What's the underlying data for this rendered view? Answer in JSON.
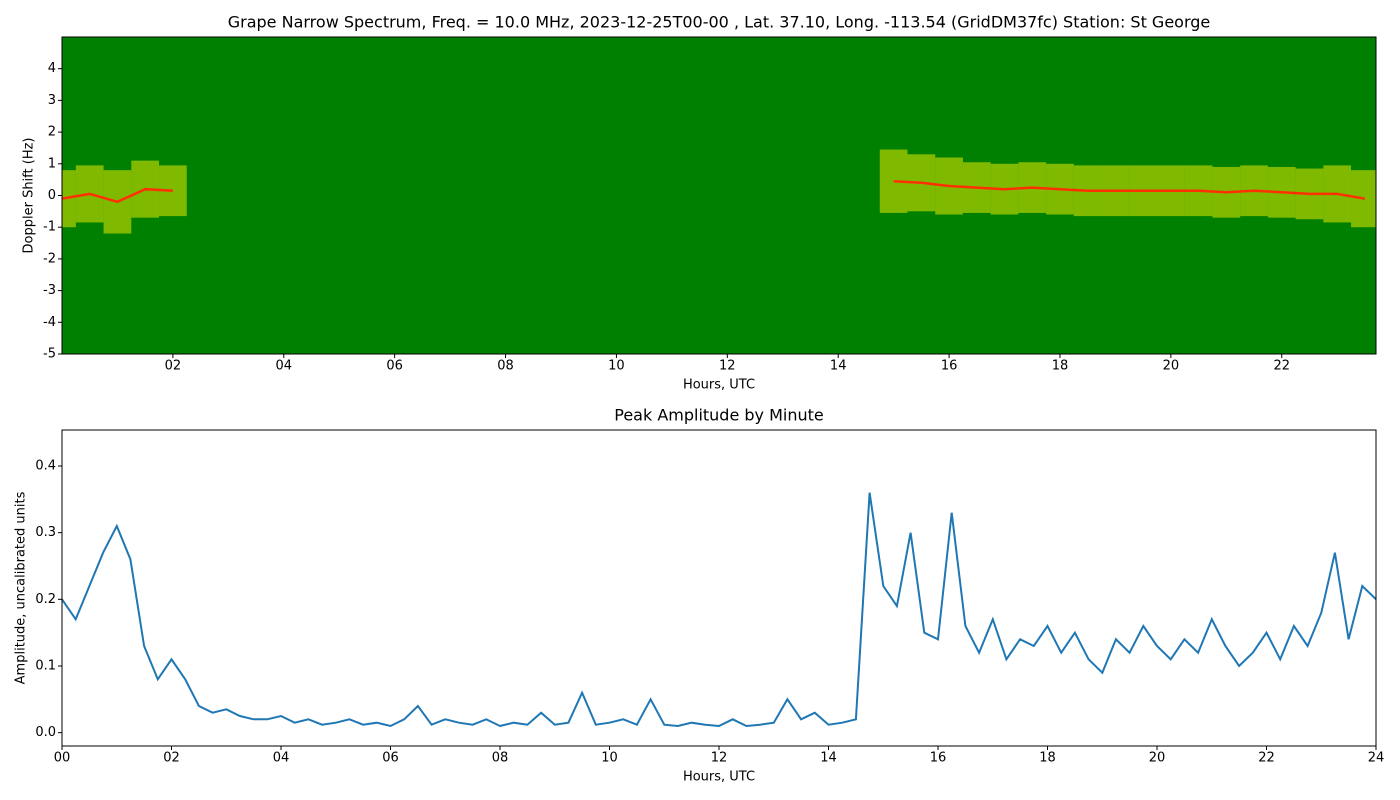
{
  "chart_data": [
    {
      "type": "spectrogram",
      "title": "Grape Narrow Spectrum, Freq. = 10.0 MHz, 2023-12-25T00-00 , Lat.  37.10, Long. -113.54 (GridDM37fc) Station: St George",
      "xlabel": "Hours, UTC",
      "ylabel": "Doppler Shift (Hz)",
      "x": [
        0,
        0.5,
        1,
        1.5,
        2,
        2.5,
        3,
        3.5,
        4,
        4.5,
        5,
        5.5,
        6,
        6.5,
        7,
        7.5,
        8,
        8.5,
        9,
        9.5,
        10,
        10.5,
        11,
        11.5,
        12,
        12.5,
        13,
        13.5,
        14,
        14.5,
        15,
        15.5,
        16,
        16.5,
        17,
        17.5,
        18,
        18.5,
        19,
        19.5,
        20,
        20.5,
        21,
        21.5,
        22,
        22.5,
        23,
        23.5
      ],
      "series": [
        {
          "name": "Doppler trace",
          "color": "#ff3000",
          "values": [
            -0.1,
            0.05,
            -0.2,
            0.2,
            0.15,
            null,
            null,
            null,
            null,
            null,
            null,
            null,
            null,
            null,
            null,
            null,
            null,
            null,
            null,
            null,
            null,
            null,
            null,
            null,
            null,
            null,
            null,
            null,
            null,
            null,
            0.45,
            0.4,
            0.3,
            0.25,
            0.2,
            0.25,
            0.2,
            0.15,
            0.15,
            0.15,
            0.15,
            0.15,
            0.1,
            0.15,
            0.1,
            0.05,
            0.05,
            -0.1
          ]
        },
        {
          "name": "Signal spread",
          "color": "#e8e800",
          "values": [
            0.9,
            0.9,
            1,
            0.9,
            0.8,
            null,
            null,
            null,
            null,
            null,
            null,
            null,
            null,
            null,
            null,
            null,
            null,
            null,
            null,
            null,
            null,
            null,
            null,
            null,
            null,
            null,
            null,
            null,
            null,
            null,
            1,
            0.9,
            0.9,
            0.8,
            0.8,
            0.8,
            0.8,
            0.8,
            0.8,
            0.8,
            0.8,
            0.8,
            0.8,
            0.8,
            0.8,
            0.8,
            0.9,
            0.9
          ]
        }
      ],
      "background": "#008000",
      "xlim": [
        0,
        23.7
      ],
      "ylim": [
        -5,
        5
      ],
      "xticks": [
        {
          "value": 2,
          "label": "02"
        },
        {
          "value": 4,
          "label": "04"
        },
        {
          "value": 6,
          "label": "06"
        },
        {
          "value": 8,
          "label": "08"
        },
        {
          "value": 10,
          "label": "10"
        },
        {
          "value": 12,
          "label": "12"
        },
        {
          "value": 14,
          "label": "14"
        },
        {
          "value": 16,
          "label": "16"
        },
        {
          "value": 18,
          "label": "18"
        },
        {
          "value": 20,
          "label": "20"
        },
        {
          "value": 22,
          "label": "22"
        }
      ],
      "yticks": [
        -5,
        -4,
        -3,
        -2,
        -1,
        0,
        1,
        2,
        3,
        4
      ]
    },
    {
      "type": "line",
      "title": "Peak Amplitude by Minute",
      "xlabel": "Hours, UTC",
      "ylabel": "Amplitude, uncalibrated units",
      "x": [
        0,
        0.25,
        0.5,
        0.75,
        1,
        1.25,
        1.5,
        1.75,
        2,
        2.25,
        2.5,
        2.75,
        3,
        3.25,
        3.5,
        3.75,
        4,
        4.25,
        4.5,
        4.75,
        5,
        5.25,
        5.5,
        5.75,
        6,
        6.25,
        6.5,
        6.75,
        7,
        7.25,
        7.5,
        7.75,
        8,
        8.25,
        8.5,
        8.75,
        9,
        9.25,
        9.5,
        9.75,
        10,
        10.25,
        10.5,
        10.75,
        11,
        11.25,
        11.5,
        11.75,
        12,
        12.25,
        12.5,
        12.75,
        13,
        13.25,
        13.5,
        13.75,
        14,
        14.25,
        14.5,
        14.75,
        15,
        15.25,
        15.5,
        15.75,
        16,
        16.25,
        16.5,
        16.75,
        17,
        17.25,
        17.5,
        17.75,
        18,
        18.25,
        18.5,
        18.75,
        19,
        19.25,
        19.5,
        19.75,
        20,
        20.25,
        20.5,
        20.75,
        21,
        21.25,
        21.5,
        21.75,
        22,
        22.25,
        22.5,
        22.75,
        23,
        23.25,
        23.5,
        23.75,
        24
      ],
      "series": [
        {
          "name": "Peak amplitude",
          "color": "#1f77b4",
          "values": [
            0.2,
            0.17,
            0.22,
            0.27,
            0.31,
            0.26,
            0.13,
            0.08,
            0.11,
            0.08,
            0.04,
            0.03,
            0.035,
            0.025,
            0.02,
            0.02,
            0.025,
            0.015,
            0.02,
            0.012,
            0.015,
            0.02,
            0.012,
            0.015,
            0.01,
            0.02,
            0.04,
            0.012,
            0.02,
            0.015,
            0.012,
            0.02,
            0.01,
            0.015,
            0.012,
            0.03,
            0.012,
            0.015,
            0.06,
            0.012,
            0.015,
            0.02,
            0.012,
            0.05,
            0.012,
            0.01,
            0.015,
            0.012,
            0.01,
            0.02,
            0.01,
            0.012,
            0.015,
            0.05,
            0.02,
            0.03,
            0.012,
            0.015,
            0.02,
            0.36,
            0.22,
            0.19,
            0.3,
            0.15,
            0.14,
            0.33,
            0.16,
            0.12,
            0.17,
            0.11,
            0.14,
            0.13,
            0.16,
            0.12,
            0.15,
            0.11,
            0.09,
            0.14,
            0.12,
            0.16,
            0.13,
            0.11,
            0.14,
            0.12,
            0.17,
            0.13,
            0.1,
            0.12,
            0.15,
            0.11,
            0.16,
            0.13,
            0.18,
            0.27,
            0.14,
            0.22,
            0.2
          ]
        }
      ],
      "xlim": [
        0,
        24
      ],
      "ylim": [
        -0.02,
        0.454
      ],
      "xticks": [
        {
          "value": 0,
          "label": "00"
        },
        {
          "value": 2,
          "label": "02"
        },
        {
          "value": 4,
          "label": "04"
        },
        {
          "value": 6,
          "label": "06"
        },
        {
          "value": 8,
          "label": "08"
        },
        {
          "value": 10,
          "label": "10"
        },
        {
          "value": 12,
          "label": "12"
        },
        {
          "value": 14,
          "label": "14"
        },
        {
          "value": 16,
          "label": "16"
        },
        {
          "value": 18,
          "label": "18"
        },
        {
          "value": 20,
          "label": "20"
        },
        {
          "value": 22,
          "label": "22"
        },
        {
          "value": 24,
          "label": "24"
        }
      ],
      "yticks": [
        {
          "value": 0,
          "label": "0.0"
        },
        {
          "value": 0.1,
          "label": "0.1"
        },
        {
          "value": 0.2,
          "label": "0.2"
        },
        {
          "value": 0.3,
          "label": "0.3"
        },
        {
          "value": 0.4,
          "label": "0.4"
        }
      ]
    }
  ]
}
